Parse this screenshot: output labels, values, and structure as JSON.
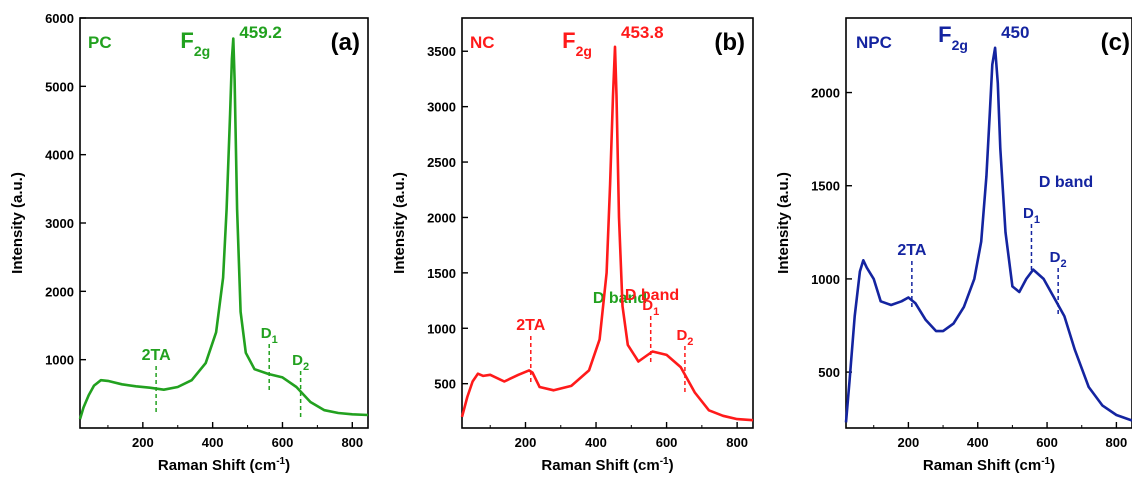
{
  "chart_data": [
    {
      "type": "line",
      "panel_label": "(a)",
      "sample_label": "PC",
      "color": "#22a11f",
      "xlabel": "Raman Shift (cm⁻¹)",
      "ylabel": "Intensity (a.u.)",
      "xlim": [
        20,
        845
      ],
      "ylim": [
        0,
        6000
      ],
      "xticks": [
        200,
        400,
        600,
        800
      ],
      "yticks": [
        1000,
        2000,
        3000,
        4000,
        5000,
        6000
      ],
      "peak": {
        "label": "F2g",
        "x": 459.2,
        "value": "459.2"
      },
      "band_label": "D band",
      "markers": [
        {
          "label": "2TA",
          "x": 238
        },
        {
          "label": "D1",
          "x": 562
        },
        {
          "label": "D2",
          "x": 652
        }
      ],
      "series": [
        {
          "x": [
            20,
            30,
            45,
            60,
            80,
            100,
            140,
            180,
            220,
            260,
            300,
            340,
            380,
            410,
            430,
            440,
            450,
            455,
            459.2,
            463,
            470,
            480,
            495,
            520,
            560,
            600,
            640,
            680,
            720,
            760,
            800,
            845
          ],
          "y": [
            130,
            300,
            480,
            620,
            700,
            690,
            640,
            610,
            590,
            560,
            600,
            700,
            950,
            1400,
            2200,
            3200,
            4600,
            5400,
            5700,
            5100,
            3200,
            1700,
            1100,
            860,
            790,
            740,
            600,
            380,
            260,
            220,
            200,
            190
          ]
        }
      ]
    },
    {
      "type": "line",
      "panel_label": "(b)",
      "sample_label": "NC",
      "color": "#ff1a1a",
      "xlabel": "Raman Shift (cm⁻¹)",
      "ylabel": "Intensity (a.u.)",
      "xlim": [
        20,
        845
      ],
      "ylim": [
        100,
        3800
      ],
      "xticks": [
        200,
        400,
        600,
        800
      ],
      "yticks": [
        500,
        1000,
        1500,
        2000,
        2500,
        3000,
        3500
      ],
      "peak": {
        "label": "F2g",
        "x": 453.8,
        "value": "453.8"
      },
      "band_label": "D band",
      "markers": [
        {
          "label": "2TA",
          "x": 215
        },
        {
          "label": "D1",
          "x": 555
        },
        {
          "label": "D2",
          "x": 652
        }
      ],
      "series": [
        {
          "x": [
            20,
            35,
            50,
            65,
            80,
            100,
            140,
            180,
            210,
            220,
            240,
            280,
            330,
            380,
            410,
            430,
            440,
            448,
            453.8,
            458,
            465,
            475,
            490,
            520,
            560,
            600,
            640,
            680,
            720,
            760,
            800,
            845
          ],
          "y": [
            200,
            380,
            520,
            590,
            570,
            580,
            520,
            580,
            620,
            600,
            470,
            440,
            480,
            620,
            900,
            1500,
            2300,
            3100,
            3540,
            3100,
            2000,
            1200,
            850,
            700,
            790,
            760,
            650,
            420,
            260,
            210,
            180,
            170
          ]
        }
      ]
    },
    {
      "type": "line",
      "panel_label": "(c)",
      "sample_label": "NPC",
      "color": "#1424a0",
      "xlabel": "Raman Shift (cm⁻¹)",
      "ylabel": "Intensity (a.u.)",
      "xlim": [
        20,
        845
      ],
      "ylim": [
        200,
        2400
      ],
      "xticks": [
        200,
        400,
        600,
        800
      ],
      "yticks": [
        500,
        1000,
        1500,
        2000
      ],
      "peak": {
        "label": "F2g",
        "x": 450,
        "value": "450"
      },
      "band_label": "D band",
      "markers": [
        {
          "label": "2TA",
          "x": 210
        },
        {
          "label": "D1",
          "x": 555
        },
        {
          "label": "D2",
          "x": 632
        }
      ],
      "series": [
        {
          "x": [
            20,
            30,
            45,
            60,
            70,
            80,
            100,
            120,
            150,
            180,
            200,
            220,
            250,
            280,
            300,
            330,
            360,
            390,
            410,
            425,
            435,
            442,
            450,
            458,
            465,
            480,
            500,
            520,
            540,
            560,
            590,
            620,
            650,
            680,
            720,
            760,
            800,
            845
          ],
          "y": [
            230,
            450,
            800,
            1040,
            1100,
            1060,
            1000,
            880,
            860,
            880,
            900,
            870,
            780,
            720,
            720,
            760,
            850,
            1000,
            1200,
            1550,
            1900,
            2150,
            2240,
            2050,
            1700,
            1250,
            960,
            930,
            1000,
            1050,
            1000,
            900,
            800,
            620,
            420,
            320,
            270,
            240
          ]
        }
      ]
    }
  ]
}
